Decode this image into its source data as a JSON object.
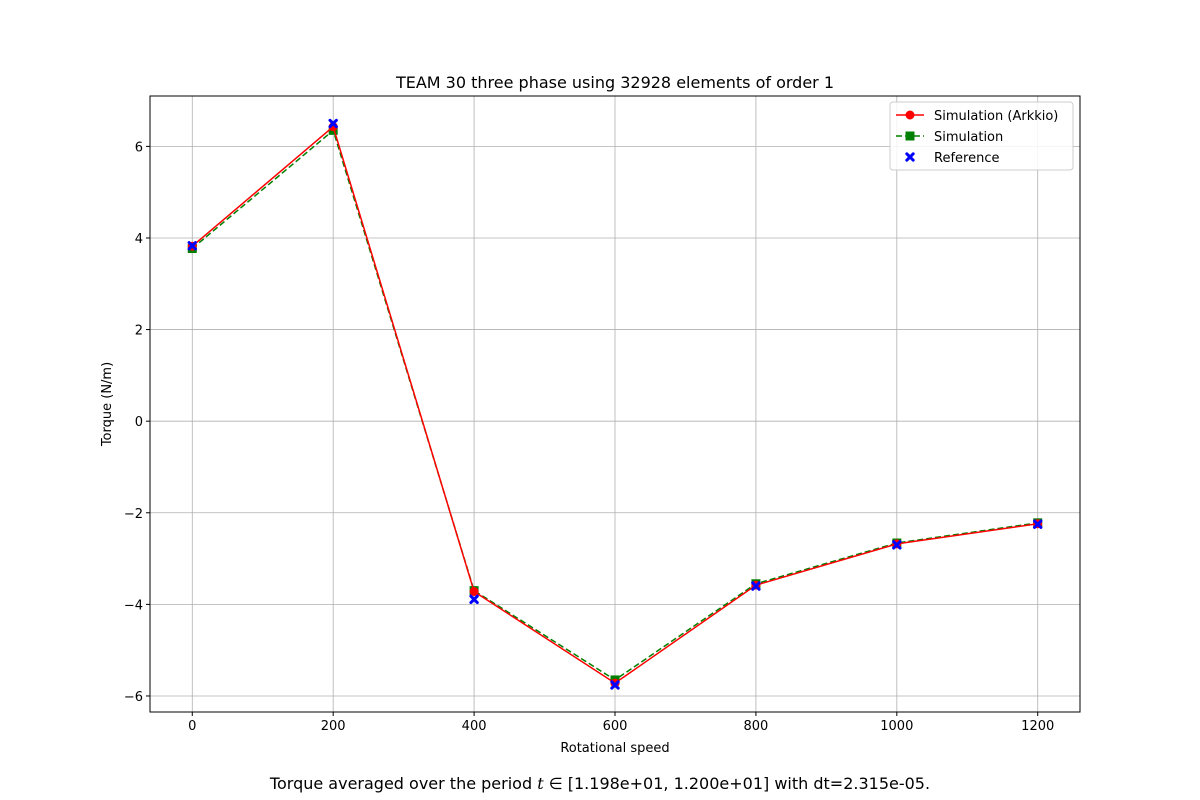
{
  "chart_data": {
    "type": "line",
    "title": "TEAM 30 three phase using 32928 elements of order 1",
    "xlabel": "Rotational speed",
    "ylabel": "Torque (N/m)",
    "xlim": [
      -60,
      1260
    ],
    "ylim": [
      -6.35,
      7.1
    ],
    "grid": true,
    "legend_position": "top-right",
    "xticks": [
      0,
      200,
      400,
      600,
      800,
      1000,
      1200
    ],
    "xtick_labels": [
      "0",
      "200",
      "400",
      "600",
      "800",
      "1000",
      "1200"
    ],
    "yticks": [
      6,
      4,
      2,
      0,
      -2,
      -4,
      -6
    ],
    "ytick_labels": [
      "6",
      "4",
      "2",
      "0",
      "−2",
      "−4",
      "−6"
    ],
    "x": [
      0,
      200,
      400,
      600,
      800,
      1000,
      1200
    ],
    "series": [
      {
        "name": "Simulation (Arkkio)",
        "color": "#ff0000",
        "style": "solid",
        "marker": "circle",
        "values": [
          3.82,
          6.43,
          -3.72,
          -5.72,
          -3.58,
          -2.68,
          -2.24
        ]
      },
      {
        "name": "Simulation",
        "color": "#008000",
        "style": "dashed",
        "marker": "square",
        "values": [
          3.77,
          6.35,
          -3.7,
          -5.65,
          -3.55,
          -2.66,
          -2.22
        ]
      },
      {
        "name": "Reference",
        "color": "#0000ff",
        "style": "none",
        "marker": "x",
        "values": [
          3.83,
          6.5,
          -3.89,
          -5.76,
          -3.6,
          -2.7,
          -2.25
        ]
      }
    ]
  },
  "caption": {
    "prefix": "Torque averaged over the period ",
    "math": "t",
    "middle": " ∈ [1.198e+01, 1.200e+01] with dt=2.315e-05."
  }
}
